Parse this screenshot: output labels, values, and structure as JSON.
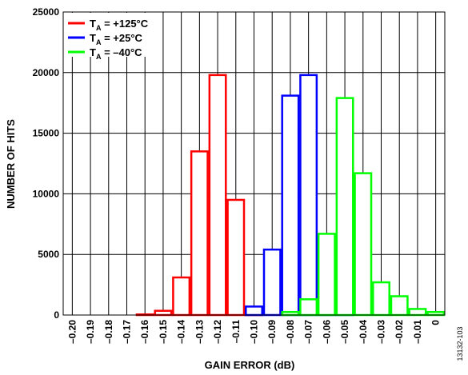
{
  "chart_data": {
    "type": "bar",
    "xlabel": "GAIN ERROR (dB)",
    "ylabel": "NUMBER OF HITS",
    "ylim": [
      0,
      25000
    ],
    "yticks": [
      "0",
      "5000",
      "10000",
      "15000",
      "20000",
      "25000"
    ],
    "categories": [
      "–0.20",
      "–0.19",
      "–0.18",
      "–0.17",
      "–0.16",
      "–0.15",
      "–0.14",
      "–0.13",
      "–0.12",
      "–0.11",
      "–0.10",
      "–0.09",
      "–0.08",
      "–0.07",
      "–0.06",
      "–0.05",
      "–0.04",
      "–0.03",
      "–0.02",
      "–0.01",
      "0"
    ],
    "grid": true,
    "legend_position": "top-left",
    "series": [
      {
        "name": "+125°C",
        "color": "#ff0000",
        "values": [
          0,
          0,
          0,
          0,
          50,
          350,
          3100,
          13500,
          19800,
          9500,
          650,
          0,
          0,
          0,
          0,
          0,
          0,
          0,
          0,
          0,
          0
        ]
      },
      {
        "name": "+25°C",
        "color": "#0000ff",
        "values": [
          0,
          0,
          0,
          0,
          0,
          0,
          0,
          0,
          0,
          0,
          700,
          5400,
          18100,
          19800,
          4800,
          150,
          0,
          0,
          0,
          0,
          0
        ]
      },
      {
        "name": "–40°C",
        "color": "#00ff00",
        "values": [
          0,
          0,
          0,
          0,
          0,
          0,
          0,
          0,
          0,
          0,
          0,
          0,
          250,
          1300,
          6700,
          17900,
          11700,
          2700,
          1550,
          500,
          250
        ]
      }
    ],
    "legend_prefix": "T",
    "legend_subscript": "A",
    "legend_eq": " = "
  },
  "figure_id": "13132-103"
}
